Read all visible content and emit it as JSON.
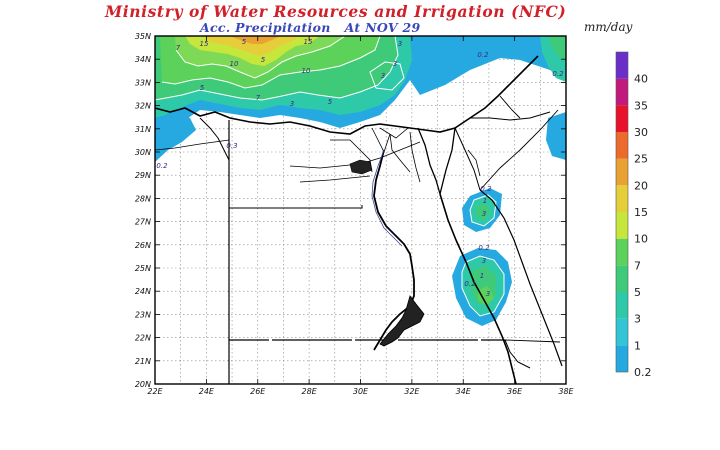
{
  "header": {
    "title": "Ministry of Water Resources and Irrigation (NFC)",
    "subtitle_product": "Acc. Precipitation",
    "subtitle_date": "At NOV 29",
    "units": "mm/day"
  },
  "axes": {
    "lat_labels": [
      "35N",
      "34N",
      "33N",
      "32N",
      "31N",
      "30N",
      "29N",
      "28N",
      "27N",
      "26N",
      "25N",
      "24N",
      "23N",
      "22N",
      "21N",
      "20N"
    ],
    "lon_labels": [
      "22E",
      "24E",
      "26E",
      "28E",
      "30E",
      "32E",
      "34E",
      "36E",
      "38E"
    ]
  },
  "colorbar": {
    "levels": [
      "0.2",
      "1",
      "3",
      "5",
      "7",
      "10",
      "15",
      "20",
      "25",
      "30",
      "35",
      "40"
    ],
    "colors": [
      "#25a9e0",
      "#33c4d6",
      "#2ec9a8",
      "#3fca7a",
      "#5cd25a",
      "#c7e63b",
      "#e6cd3a",
      "#e9a232",
      "#ec6a2c",
      "#e8132a",
      "#c2197c",
      "#6a2ec9"
    ]
  },
  "contour_labels": [
    "7",
    "15",
    "5",
    "15",
    "10",
    "5",
    "10",
    "5",
    "7",
    "3",
    "5",
    "3",
    "3",
    "3",
    "0.2",
    "0.2",
    "0.3",
    "0.2",
    "0.2",
    "1",
    "3",
    "0.2",
    "3",
    "1",
    "0.2",
    "3"
  ]
}
